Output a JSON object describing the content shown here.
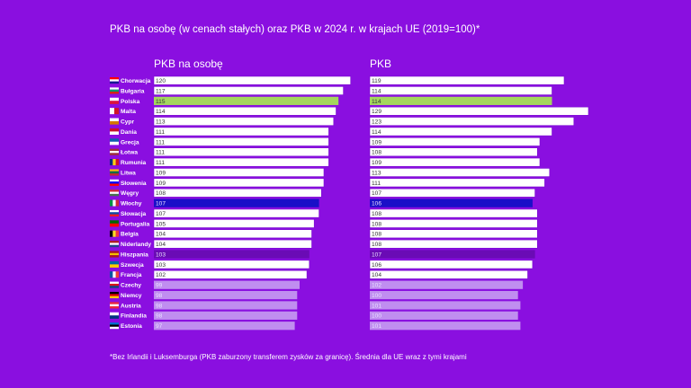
{
  "title": "PKB na osobę (w cenach stałych) oraz PKB w 2024 r. w krajach UE (2019=100)*",
  "footnote": "*Bez Irlandii i Luksemburga (PKB zaburzony transferem zysków za granicę). Średnia dla UE wraz z tymi krajami",
  "colors": {
    "background": "#8a0fe0",
    "bar_default": "#ffffff",
    "bar_poland": "#a4d65e",
    "bar_italy": "#1a0fc8",
    "bar_spain": "#6a0bb5",
    "bar_below_100": "#c08ef0"
  },
  "chart_data": [
    {
      "type": "bar",
      "orientation": "horizontal",
      "title": "PKB na osobę",
      "categories": [
        "Chorwacja",
        "Bułgaria",
        "Polska",
        "Malta",
        "Cypr",
        "Dania",
        "Grecja",
        "Łotwa",
        "Rumunia",
        "Litwa",
        "Słowenia",
        "Węgry",
        "Włochy",
        "Słowacja",
        "Portugalia",
        "Belgia",
        "Niderlandy",
        "Hiszpania",
        "Szwecja",
        "Francja",
        "Czechy",
        "Niemcy",
        "Austria",
        "Finlandia",
        "Estonia"
      ],
      "values": [
        120,
        117,
        115,
        114,
        113,
        111,
        111,
        111,
        111,
        109,
        109,
        108,
        107,
        107,
        105,
        104,
        104,
        103,
        103,
        102,
        99,
        98,
        98,
        98,
        97
      ]
    },
    {
      "type": "bar",
      "orientation": "horizontal",
      "title": "PKB",
      "categories": [
        "Chorwacja",
        "Bułgaria",
        "Polska",
        "Malta",
        "Cypr",
        "Dania",
        "Grecja",
        "Łotwa",
        "Rumunia",
        "Litwa",
        "Słowenia",
        "Węgry",
        "Włochy",
        "Słowacja",
        "Portugalia",
        "Belgia",
        "Niderlandy",
        "Hiszpania",
        "Szwecja",
        "Francja",
        "Czechy",
        "Niemcy",
        "Austria",
        "Finlandia",
        "Estonia"
      ],
      "values": [
        119,
        114,
        114,
        129,
        123,
        114,
        109,
        108,
        109,
        113,
        111,
        107,
        106,
        108,
        108,
        108,
        108,
        107,
        106,
        104,
        102,
        100,
        101,
        100,
        101
      ]
    }
  ],
  "flags": {
    "Chorwacja": [
      "#ff0000",
      "#ffffff",
      "#171796"
    ],
    "Bułgaria": [
      "#ffffff",
      "#00966e",
      "#d62612"
    ],
    "Polska": [
      "#ffffff",
      "#dc143c"
    ],
    "Malta": [
      "#ffffff",
      "#cf142b"
    ],
    "Cypr": [
      "#ffffff",
      "#d57800"
    ],
    "Dania": [
      "#c8102e",
      "#ffffff"
    ],
    "Grecja": [
      "#0d5eaf",
      "#ffffff"
    ],
    "Łotwa": [
      "#9e3039",
      "#ffffff",
      "#9e3039"
    ],
    "Rumunia": [
      "#002b7f",
      "#fcd116",
      "#ce1126"
    ],
    "Litwa": [
      "#fdb913",
      "#006a44",
      "#c1272d"
    ],
    "Słowenia": [
      "#ffffff",
      "#0000ff",
      "#ff0000"
    ],
    "Węgry": [
      "#ce2939",
      "#ffffff",
      "#477050"
    ],
    "Włochy": [
      "#009246",
      "#ffffff",
      "#ce2b37"
    ],
    "Słowacja": [
      "#ffffff",
      "#0b4ea2",
      "#ee1c25"
    ],
    "Portugalia": [
      "#006600",
      "#ff0000"
    ],
    "Belgia": [
      "#000000",
      "#fdda24",
      "#ef3340"
    ],
    "Niderlandy": [
      "#ae1c28",
      "#ffffff",
      "#21468b"
    ],
    "Hiszpania": [
      "#aa151b",
      "#f1bf00",
      "#aa151b"
    ],
    "Szwecja": [
      "#006aa7",
      "#fecc00"
    ],
    "Francja": [
      "#0055a4",
      "#ffffff",
      "#ef4135"
    ],
    "Czechy": [
      "#ffffff",
      "#d7141a",
      "#11457e"
    ],
    "Niemcy": [
      "#000000",
      "#dd0000",
      "#ffce00"
    ],
    "Austria": [
      "#ed2939",
      "#ffffff",
      "#ed2939"
    ],
    "Finlandia": [
      "#ffffff",
      "#003580"
    ],
    "Estonia": [
      "#0072ce",
      "#000000",
      "#ffffff"
    ]
  }
}
